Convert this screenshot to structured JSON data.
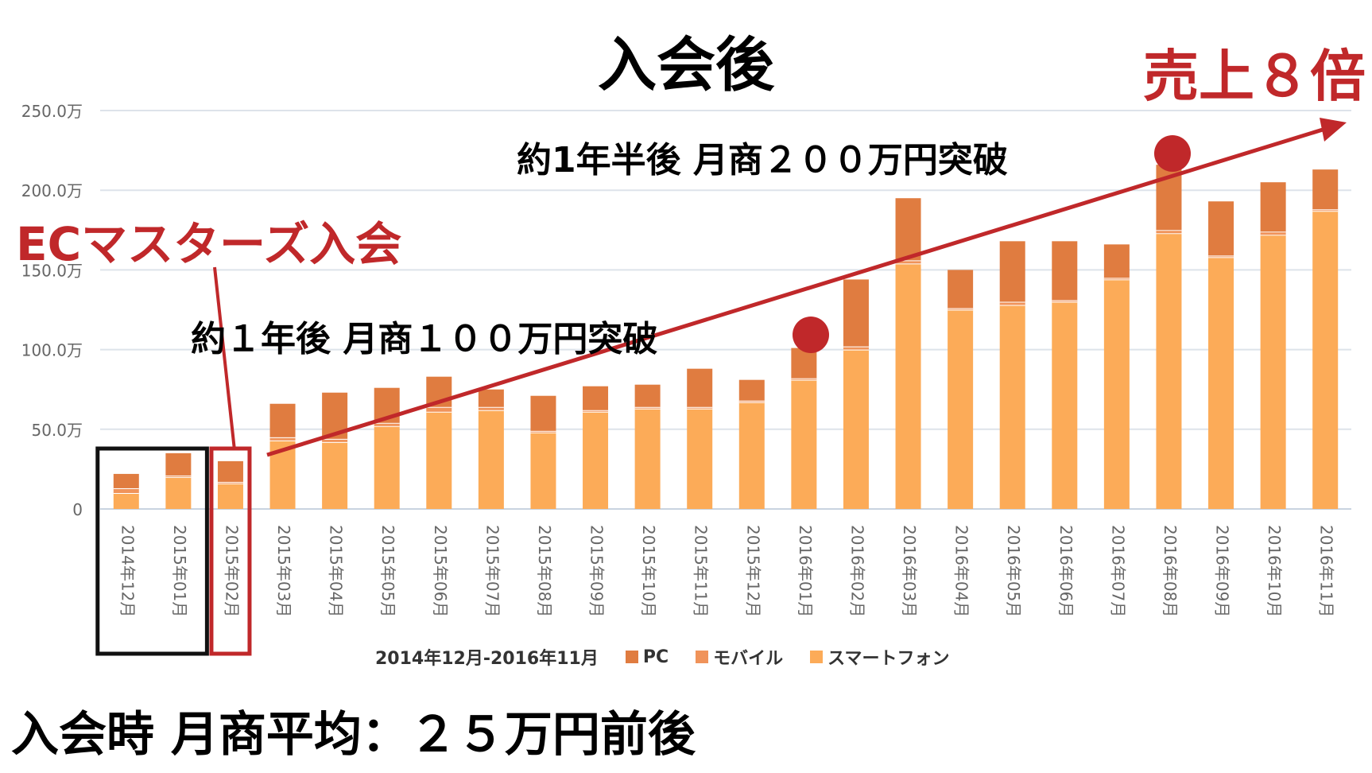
{
  "title": "入会後",
  "headline_right": "売上８倍",
  "join_label": "ECマスターズ入会",
  "note_1year": "約１年後 月商１００万円突破",
  "note_18months": "約1年半後 月商２００万円突破",
  "bottom_text": "入会時 月商平均：２５万円前後",
  "colors": {
    "pc": "#e07c40",
    "mobile": "#f0935a",
    "smartphone": "#fcab58",
    "accent_red": "#c0282a"
  },
  "chart_data": {
    "type": "bar",
    "stacked": true,
    "xlabel": "2014年12月-2016年11月",
    "ylabel": "",
    "ylim": [
      0,
      250
    ],
    "yticks": [
      "0",
      "50.0万",
      "100.0万",
      "150.0万",
      "200.0万",
      "250.0万"
    ],
    "ytick_values": [
      0,
      50,
      100,
      150,
      200,
      250
    ],
    "grid": true,
    "legend_position": "bottom",
    "categories": [
      "2014年12月",
      "2015年01月",
      "2015年02月",
      "2015年03月",
      "2015年04月",
      "2015年05月",
      "2015年06月",
      "2015年07月",
      "2015年08月",
      "2015年09月",
      "2015年10月",
      "2015年11月",
      "2015年12月",
      "2016年01月",
      "2016年02月",
      "2016年03月",
      "2016年04月",
      "2016年05月",
      "2016年06月",
      "2016年07月",
      "2016年08月",
      "2016年09月",
      "2016年10月",
      "2016年11月"
    ],
    "series": [
      {
        "name": "スマートフォン",
        "values": [
          10,
          20,
          16,
          43,
          42,
          52,
          61,
          62,
          48,
          61,
          63,
          63,
          67,
          81,
          100,
          154,
          125,
          128,
          130,
          144,
          173,
          158,
          172,
          187
        ]
      },
      {
        "name": "モバイル",
        "values": [
          3,
          1,
          1,
          2,
          2,
          2,
          3,
          2,
          1,
          1,
          1,
          1,
          1,
          1,
          2,
          2,
          1,
          2,
          1,
          1,
          2,
          1,
          2,
          1
        ]
      },
      {
        "name": "PC",
        "values": [
          9,
          14,
          13,
          21,
          29,
          22,
          19,
          11,
          22,
          15,
          14,
          24,
          13,
          19,
          42,
          39,
          24,
          38,
          37,
          21,
          41,
          34,
          31,
          25
        ]
      }
    ]
  }
}
